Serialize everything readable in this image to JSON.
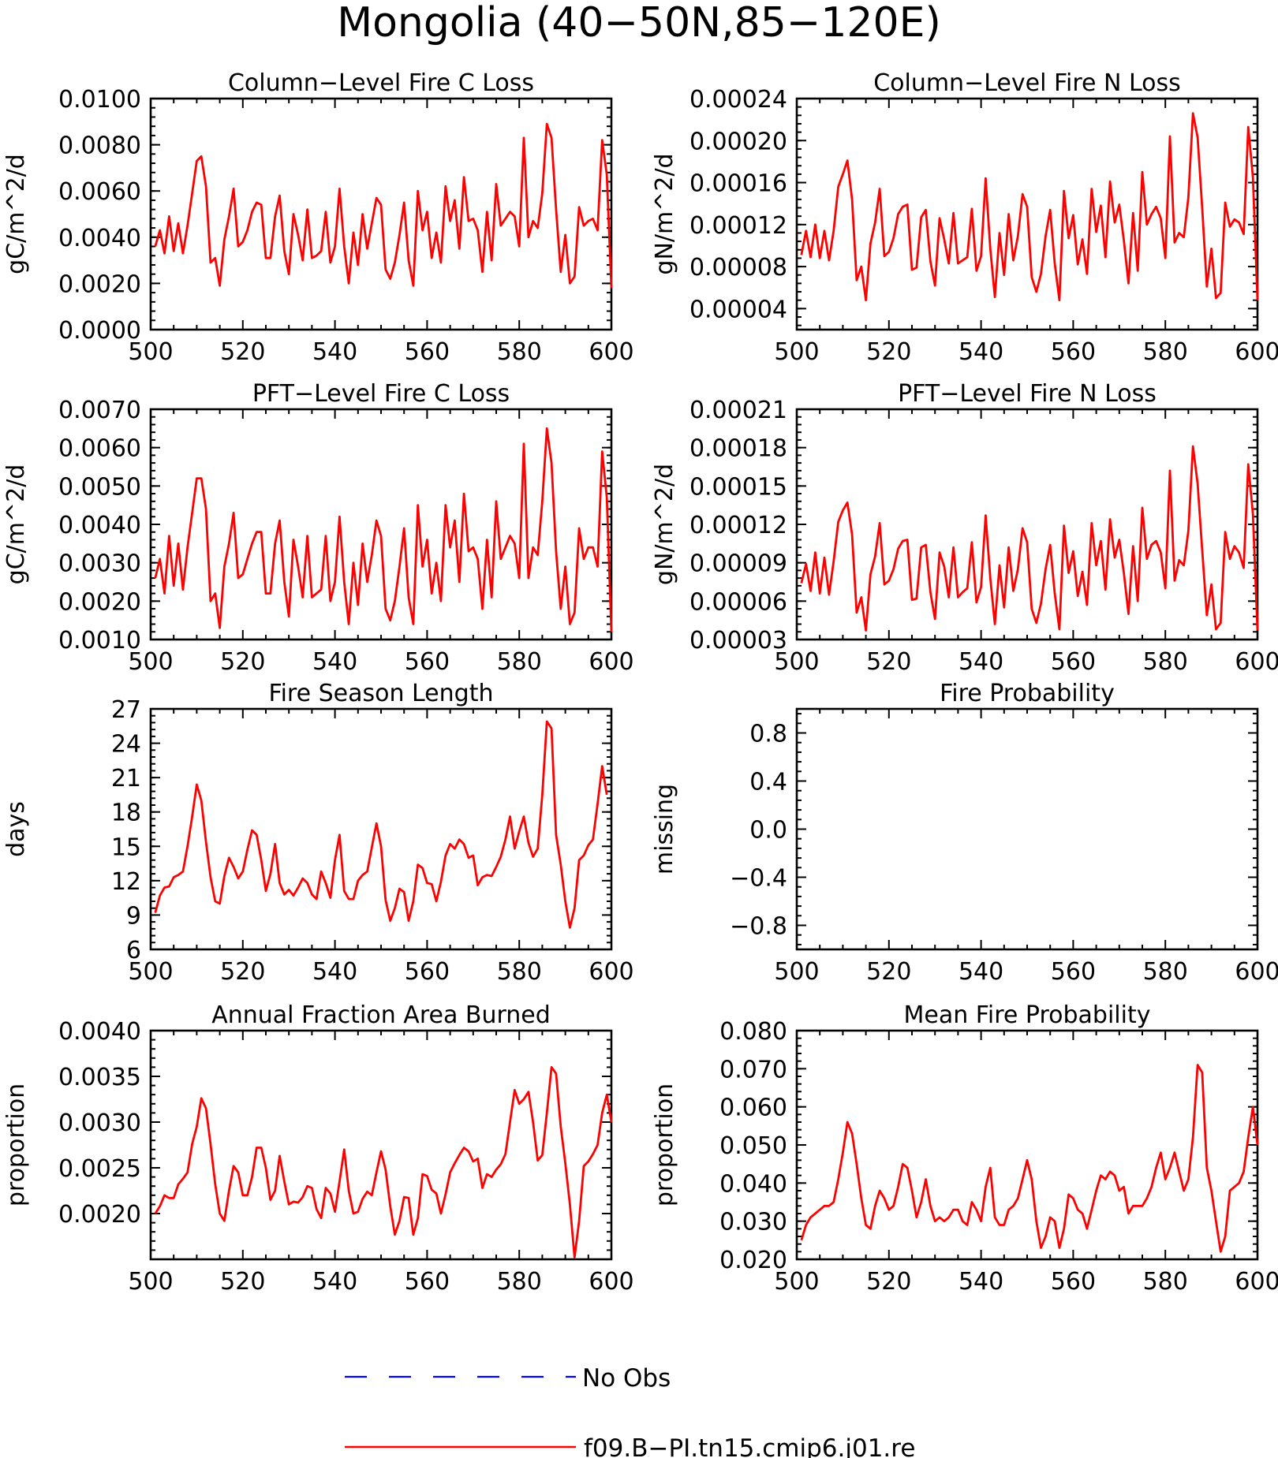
{
  "figure_title": "Mongolia (40−50N,85−120E)",
  "colors": {
    "model": "#ff0000",
    "obs": "#0000ff",
    "axes": "#000000"
  },
  "legend": {
    "obs_label": "No Obs",
    "model_label": "f09.B−PI.tn15.cmip6.j01.re"
  },
  "chart_data": [
    {
      "type": "line",
      "title": "Column−Level Fire C Loss",
      "ylabel": "gC/m^2/d",
      "xlim": [
        500,
        600
      ],
      "ylim": [
        0,
        0.01
      ],
      "xticks": [
        "500",
        "520",
        "540",
        "560",
        "580",
        "600"
      ],
      "yticks": [
        "0.0000",
        "0.0020",
        "0.0040",
        "0.0060",
        "0.0080",
        "0.0100"
      ],
      "x_start": 501,
      "series": [
        {
          "values": [
            0.0036,
            0.0043,
            0.0033,
            0.0049,
            0.0034,
            0.0046,
            0.0033,
            0.0045,
            0.0059,
            0.0073,
            0.0075,
            0.0062,
            0.0029,
            0.0031,
            0.0019,
            0.0039,
            0.0049,
            0.0061,
            0.0036,
            0.0038,
            0.0043,
            0.0051,
            0.0055,
            0.0054,
            0.0031,
            0.0031,
            0.0049,
            0.0058,
            0.0034,
            0.0024,
            0.005,
            0.0041,
            0.003,
            0.0052,
            0.0031,
            0.0032,
            0.0034,
            0.0051,
            0.0029,
            0.0036,
            0.0061,
            0.0036,
            0.002,
            0.0042,
            0.0028,
            0.005,
            0.0035,
            0.0046,
            0.0057,
            0.0054,
            0.0026,
            0.0022,
            0.0029,
            0.0041,
            0.0055,
            0.003,
            0.0019,
            0.006,
            0.0043,
            0.0051,
            0.0031,
            0.0042,
            0.0029,
            0.0062,
            0.0047,
            0.0056,
            0.0035,
            0.0066,
            0.0047,
            0.0048,
            0.0043,
            0.0025,
            0.0051,
            0.003,
            0.0063,
            0.0045,
            0.0048,
            0.0051,
            0.0049,
            0.0036,
            0.0083,
            0.004,
            0.0047,
            0.0044,
            0.0059,
            0.0089,
            0.0083,
            0.0052,
            0.0025,
            0.0041,
            0.002,
            0.0023,
            0.0053,
            0.0045,
            0.0047,
            0.0048,
            0.0043,
            0.0082,
            0.0067,
            0.0018
          ]
        }
      ]
    },
    {
      "type": "line",
      "title": "Column−Level Fire N Loss",
      "ylabel": "gN/m^2/d",
      "xlim": [
        500,
        600
      ],
      "ylim": [
        2e-05,
        0.00024
      ],
      "xticks": [
        "500",
        "520",
        "540",
        "560",
        "580",
        "600"
      ],
      "yticks": [
        "0.00004",
        "0.00008",
        "0.00012",
        "0.00016",
        "0.00020",
        "0.00024"
      ],
      "x_start": 501,
      "series": [
        {
          "values": [
            9.1e-05,
            0.000114,
            8.9e-05,
            0.00012,
            8.8e-05,
            0.000114,
            8.6e-05,
            0.000114,
            0.000156,
            0.000168,
            0.000181,
            0.000144,
            6.7e-05,
            8e-05,
            4.8e-05,
            0.000102,
            0.000122,
            0.000154,
            9e-05,
            9.4e-05,
            0.000107,
            0.00013,
            0.000137,
            0.000139,
            7.7e-05,
            7.9e-05,
            0.000127,
            0.000134,
            8.5e-05,
            6.2e-05,
            0.000126,
            0.000106,
            8.3e-05,
            0.000131,
            8.3e-05,
            8.6e-05,
            8.9e-05,
            0.000135,
            7.6e-05,
            9e-05,
            0.000164,
            9.7e-05,
            5.1e-05,
            0.000112,
            7.2e-05,
            0.00013,
            8.6e-05,
            0.000109,
            0.000149,
            0.000137,
            7e-05,
            5.6e-05,
            7.3e-05,
            0.000109,
            0.000134,
            8.3e-05,
            4.8e-05,
            0.000152,
            0.000107,
            0.000129,
            8.2e-05,
            0.000106,
            7.3e-05,
            0.000154,
            0.000113,
            0.000138,
            8.9e-05,
            0.000161,
            0.000122,
            0.000139,
            0.000105,
            6.4e-05,
            0.000131,
            7.6e-05,
            0.00017,
            0.00012,
            0.00013,
            0.000137,
            0.000126,
            8.8e-05,
            0.000204,
            0.000103,
            0.000112,
            0.000108,
            0.000146,
            0.000226,
            0.000203,
            0.000136,
            6.1e-05,
            9.7e-05,
            5e-05,
            5.5e-05,
            0.000141,
            0.000118,
            0.000125,
            0.000122,
            0.000111,
            0.000213,
            0.000165,
            4.8e-05
          ]
        }
      ]
    },
    {
      "type": "line",
      "title": "PFT−Level Fire C Loss",
      "ylabel": "gC/m^2/d",
      "xlim": [
        500,
        600
      ],
      "ylim": [
        0.001,
        0.007
      ],
      "xticks": [
        "500",
        "520",
        "540",
        "560",
        "580",
        "600"
      ],
      "yticks": [
        "0.0010",
        "0.0020",
        "0.0030",
        "0.0040",
        "0.0050",
        "0.0060",
        "0.0070"
      ],
      "x_start": 501,
      "series": [
        {
          "values": [
            0.0026,
            0.0031,
            0.0022,
            0.0037,
            0.0024,
            0.0035,
            0.0023,
            0.0034,
            0.0043,
            0.0052,
            0.0052,
            0.0044,
            0.002,
            0.0022,
            0.0013,
            0.0029,
            0.0035,
            0.0043,
            0.0026,
            0.0027,
            0.0031,
            0.0035,
            0.0038,
            0.0038,
            0.0022,
            0.0022,
            0.0035,
            0.0041,
            0.0025,
            0.0016,
            0.0036,
            0.0029,
            0.0021,
            0.0037,
            0.0021,
            0.0022,
            0.0023,
            0.0037,
            0.002,
            0.0025,
            0.0042,
            0.0025,
            0.0014,
            0.003,
            0.0019,
            0.0035,
            0.0025,
            0.0032,
            0.0041,
            0.0037,
            0.0018,
            0.0015,
            0.002,
            0.0029,
            0.0039,
            0.0021,
            0.0014,
            0.0045,
            0.0029,
            0.0036,
            0.0022,
            0.003,
            0.002,
            0.0045,
            0.0034,
            0.0041,
            0.0025,
            0.0048,
            0.0033,
            0.0034,
            0.0031,
            0.0018,
            0.0036,
            0.0021,
            0.0046,
            0.0031,
            0.0034,
            0.0037,
            0.0035,
            0.0026,
            0.0061,
            0.0026,
            0.0034,
            0.0032,
            0.0046,
            0.0065,
            0.0056,
            0.0033,
            0.0018,
            0.0029,
            0.0014,
            0.0017,
            0.0039,
            0.0031,
            0.0034,
            0.0034,
            0.0029,
            0.0059,
            0.0047,
            0.0012
          ]
        }
      ]
    },
    {
      "type": "line",
      "title": "PFT−Level Fire N Loss",
      "ylabel": "gN/m^2/d",
      "xlim": [
        500,
        600
      ],
      "ylim": [
        3e-05,
        0.00021
      ],
      "xticks": [
        "500",
        "520",
        "540",
        "560",
        "580",
        "600"
      ],
      "yticks": [
        "0.00003",
        "0.00006",
        "0.00009",
        "0.00012",
        "0.00015",
        "0.00018",
        "0.00021"
      ],
      "x_start": 501,
      "series": [
        {
          "values": [
            7.4e-05,
            8.9e-05,
            6.8e-05,
            9.8e-05,
            6.6e-05,
            9.4e-05,
            6.5e-05,
            9.1e-05,
            0.000122,
            0.000131,
            0.000137,
            0.000112,
            5.1e-05,
            6.3e-05,
            3.7e-05,
            8.1e-05,
            9.5e-05,
            0.000121,
            7.3e-05,
            7.6e-05,
            8.5e-05,
            0.000101,
            0.000107,
            0.000108,
            6.1e-05,
            6.2e-05,
            0.000102,
            0.000104,
            6.7e-05,
            4.6e-05,
            9.8e-05,
            8.7e-05,
            6.3e-05,
            0.000102,
            6.3e-05,
            6.7e-05,
            7e-05,
            0.000106,
            5.9e-05,
            7.1e-05,
            0.000127,
            7.8e-05,
            4.2e-05,
            8.8e-05,
            5.5e-05,
            0.000102,
            6.8e-05,
            8.5e-05,
            0.000117,
            0.000106,
            5.4e-05,
            4.3e-05,
            5.8e-05,
            8.5e-05,
            0.000104,
            6.6e-05,
            3.8e-05,
            0.000119,
            8.2e-05,
            9.9e-05,
            6.4e-05,
            8.3e-05,
            5.7e-05,
            0.000121,
            8.8e-05,
            0.000107,
            6.9e-05,
            0.000124,
            9.4e-05,
            0.000108,
            8.2e-05,
            5e-05,
            0.000103,
            6e-05,
            0.000133,
            9.3e-05,
            0.000104,
            0.000107,
            9.8e-05,
            7e-05,
            0.000162,
            7.6e-05,
            9.2e-05,
            8.8e-05,
            0.000115,
            0.000181,
            0.000152,
            0.0001,
            4.9e-05,
            7.3e-05,
            3.8e-05,
            4.3e-05,
            0.000114,
            9.3e-05,
            0.000103,
            9.8e-05,
            8.6e-05,
            0.000167,
            0.000128,
            3.7e-05
          ]
        }
      ]
    },
    {
      "type": "line",
      "title": "Fire Season Length",
      "ylabel": "days",
      "xlim": [
        500,
        600
      ],
      "ylim": [
        6,
        27
      ],
      "xticks": [
        "500",
        "520",
        "540",
        "560",
        "580",
        "600"
      ],
      "yticks": [
        "6",
        "9",
        "12",
        "15",
        "18",
        "21",
        "24",
        "27"
      ],
      "x_start": 501,
      "series": [
        {
          "values": [
            9.2,
            10.7,
            11.4,
            11.5,
            12.3,
            12.5,
            12.8,
            15.0,
            17.6,
            20.4,
            19.0,
            15.4,
            12.3,
            10.2,
            10.0,
            12.4,
            14.0,
            13.2,
            12.2,
            12.8,
            14.7,
            16.4,
            16.0,
            13.8,
            11.1,
            12.6,
            15.2,
            11.8,
            10.8,
            11.2,
            10.7,
            11.4,
            12.2,
            11.8,
            10.8,
            10.4,
            12.8,
            11.8,
            10.5,
            13.8,
            16.0,
            11.1,
            10.4,
            10.4,
            12.0,
            12.5,
            12.8,
            14.9,
            17.0,
            15.0,
            10.3,
            8.5,
            9.6,
            11.3,
            11.0,
            8.5,
            10.2,
            13.4,
            13.1,
            11.8,
            11.7,
            10.2,
            11.9,
            14.2,
            15.2,
            14.8,
            15.6,
            15.2,
            14.0,
            14.2,
            11.6,
            12.3,
            12.5,
            12.4,
            13.2,
            14.1,
            15.6,
            17.6,
            14.8,
            16.3,
            17.6,
            15.3,
            14.1,
            14.8,
            19.5,
            25.9,
            25.3,
            16.0,
            13.4,
            10.2,
            7.9,
            9.6,
            13.8,
            14.2,
            15.1,
            15.6,
            18.7,
            22.0,
            19.5
          ]
        }
      ]
    },
    {
      "type": "line",
      "title": "Fire Probability",
      "ylabel": "missing",
      "xlim": [
        500,
        600
      ],
      "ylim": [
        -1,
        1
      ],
      "xticks": [
        "500",
        "520",
        "540",
        "560",
        "580",
        "600"
      ],
      "yticks": [
        "−0.8",
        "−0.4",
        "0.0",
        "0.4",
        "0.8"
      ],
      "x_start": 501,
      "series": []
    },
    {
      "type": "line",
      "title": "Annual Fraction Area Burned",
      "ylabel": "proportion",
      "xlim": [
        500,
        600
      ],
      "ylim": [
        0.0015,
        0.004
      ],
      "xticks": [
        "500",
        "520",
        "540",
        "560",
        "580",
        "600"
      ],
      "yticks": [
        "0.0020",
        "0.0025",
        "0.0030",
        "0.0035",
        "0.0040"
      ],
      "x_start": 501,
      "series": [
        {
          "values": [
            0.002,
            0.00208,
            0.0022,
            0.00217,
            0.00217,
            0.00232,
            0.00238,
            0.00245,
            0.00276,
            0.00295,
            0.00326,
            0.00315,
            0.00276,
            0.00232,
            0.002,
            0.00192,
            0.00225,
            0.00252,
            0.00245,
            0.0022,
            0.0022,
            0.0024,
            0.00272,
            0.00272,
            0.0025,
            0.00215,
            0.00225,
            0.00263,
            0.00235,
            0.0021,
            0.00213,
            0.00212,
            0.00218,
            0.0023,
            0.00228,
            0.00205,
            0.00195,
            0.00228,
            0.00222,
            0.00202,
            0.00235,
            0.0027,
            0.00225,
            0.002,
            0.00202,
            0.00216,
            0.00224,
            0.0022,
            0.00245,
            0.00268,
            0.00248,
            0.00208,
            0.00177,
            0.00192,
            0.00218,
            0.00217,
            0.00177,
            0.00195,
            0.00243,
            0.00241,
            0.00226,
            0.00222,
            0.002,
            0.00221,
            0.00245,
            0.00255,
            0.00264,
            0.00272,
            0.00268,
            0.00257,
            0.0026,
            0.00228,
            0.00243,
            0.0024,
            0.00248,
            0.00254,
            0.00265,
            0.003,
            0.00335,
            0.0032,
            0.00325,
            0.00333,
            0.003,
            0.00258,
            0.00264,
            0.0031,
            0.0036,
            0.00353,
            0.00295,
            0.00255,
            0.0021,
            0.00152,
            0.00192,
            0.00252,
            0.00257,
            0.00265,
            0.00275,
            0.0031,
            0.0033,
            0.003
          ]
        }
      ]
    },
    {
      "type": "line",
      "title": "Mean Fire Probability",
      "ylabel": "proportion",
      "xlim": [
        500,
        600
      ],
      "ylim": [
        0.02,
        0.08
      ],
      "xticks": [
        "500",
        "520",
        "540",
        "560",
        "580",
        "600"
      ],
      "yticks": [
        "0.020",
        "0.030",
        "0.040",
        "0.050",
        "0.060",
        "0.070",
        "0.080"
      ],
      "x_start": 501,
      "series": [
        {
          "values": [
            0.025,
            0.029,
            0.031,
            0.032,
            0.033,
            0.034,
            0.034,
            0.035,
            0.041,
            0.048,
            0.056,
            0.053,
            0.045,
            0.036,
            0.029,
            0.028,
            0.034,
            0.038,
            0.036,
            0.033,
            0.034,
            0.039,
            0.045,
            0.044,
            0.038,
            0.031,
            0.035,
            0.041,
            0.034,
            0.03,
            0.031,
            0.03,
            0.031,
            0.033,
            0.033,
            0.03,
            0.029,
            0.035,
            0.033,
            0.03,
            0.039,
            0.044,
            0.031,
            0.029,
            0.029,
            0.033,
            0.034,
            0.036,
            0.041,
            0.046,
            0.041,
            0.03,
            0.023,
            0.026,
            0.031,
            0.03,
            0.023,
            0.028,
            0.037,
            0.036,
            0.033,
            0.032,
            0.028,
            0.033,
            0.038,
            0.042,
            0.041,
            0.043,
            0.042,
            0.038,
            0.039,
            0.032,
            0.034,
            0.034,
            0.034,
            0.036,
            0.039,
            0.044,
            0.048,
            0.041,
            0.044,
            0.048,
            0.043,
            0.038,
            0.041,
            0.052,
            0.071,
            0.069,
            0.044,
            0.038,
            0.03,
            0.022,
            0.026,
            0.038,
            0.039,
            0.04,
            0.043,
            0.052,
            0.06,
            0.05
          ]
        }
      ]
    }
  ]
}
